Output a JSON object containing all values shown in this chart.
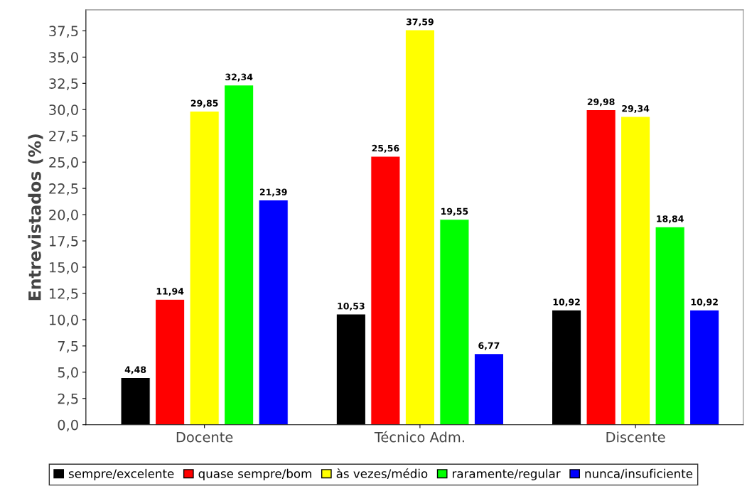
{
  "chart_data": {
    "type": "bar",
    "ylabel": "Entrevistados (%)",
    "categories": [
      "Docente",
      "Técnico Adm.",
      "Discente"
    ],
    "series": [
      {
        "name": "sempre/excelente",
        "color": "#000000",
        "values": [
          4.48,
          10.53,
          10.92
        ],
        "value_labels": [
          "4,48",
          "10,53",
          "10,92"
        ]
      },
      {
        "name": "quase sempre/bom",
        "color": "#ff0000",
        "values": [
          11.94,
          25.56,
          29.98
        ],
        "value_labels": [
          "11,94",
          "25,56",
          "29,98"
        ]
      },
      {
        "name": "às vezes/médio",
        "color": "#ffff00",
        "values": [
          29.85,
          37.59,
          29.34
        ],
        "value_labels": [
          "29,85",
          "37,59",
          "29,34"
        ]
      },
      {
        "name": "raramente/regular",
        "color": "#00ff00",
        "values": [
          32.34,
          19.55,
          18.84
        ],
        "value_labels": [
          "32,34",
          "19,55",
          "18,84"
        ]
      },
      {
        "name": "nunca/insuficiente",
        "color": "#0000ff",
        "values": [
          21.39,
          6.77,
          10.92
        ],
        "value_labels": [
          "21,39",
          "6,77",
          "10,92"
        ]
      }
    ],
    "ylim": [
      0,
      39.5
    ],
    "yticks": [
      {
        "value": 0,
        "label": "0,0"
      },
      {
        "value": 2.5,
        "label": "2,5"
      },
      {
        "value": 5,
        "label": "5,0"
      },
      {
        "value": 7.5,
        "label": "7,5"
      },
      {
        "value": 10,
        "label": "10,0"
      },
      {
        "value": 12.5,
        "label": "12,5"
      },
      {
        "value": 15,
        "label": "15,0"
      },
      {
        "value": 17.5,
        "label": "17,5"
      },
      {
        "value": 20,
        "label": "20,0"
      },
      {
        "value": 22.5,
        "label": "22,5"
      },
      {
        "value": 25,
        "label": "25,0"
      },
      {
        "value": 27.5,
        "label": "27,5"
      },
      {
        "value": 30,
        "label": "30,0"
      },
      {
        "value": 32.5,
        "label": "32,5"
      },
      {
        "value": 35,
        "label": "35,0"
      },
      {
        "value": 37.5,
        "label": "37,5"
      }
    ],
    "grid": false,
    "legend": "bottom"
  }
}
